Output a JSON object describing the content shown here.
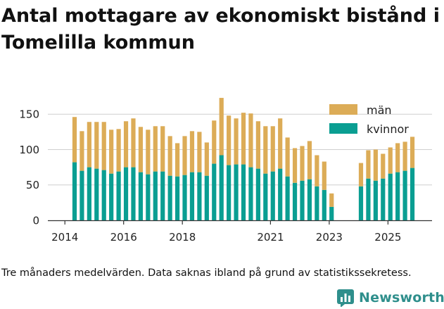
{
  "chart_data": {
    "type": "bar",
    "stacked": true,
    "title": "Antal mottagare av ekonomiskt bistånd i Tomelilla kommun",
    "xlabel": "",
    "ylabel": "",
    "x": [
      2014.33,
      2014.58,
      2014.83,
      2015.08,
      2015.33,
      2015.58,
      2015.83,
      2016.08,
      2016.33,
      2016.58,
      2016.83,
      2017.08,
      2017.33,
      2017.58,
      2017.83,
      2018.08,
      2018.33,
      2018.58,
      2018.83,
      2019.08,
      2019.33,
      2019.58,
      2019.83,
      2020.08,
      2020.33,
      2020.58,
      2020.83,
      2021.08,
      2021.33,
      2021.58,
      2021.83,
      2022.08,
      2022.33,
      2022.58,
      2022.83,
      2023.08,
      2023.33,
      2023.58,
      2023.83,
      2024.08,
      2024.33,
      2024.58,
      2024.83,
      2025.08,
      2025.33,
      2025.58,
      2025.83
    ],
    "series": [
      {
        "name": "kvinnor",
        "color": "#0a9e92",
        "values": [
          82,
          70,
          75,
          73,
          71,
          66,
          69,
          75,
          75,
          68,
          65,
          69,
          69,
          63,
          62,
          64,
          68,
          68,
          63,
          80,
          92,
          78,
          79,
          79,
          75,
          73,
          66,
          69,
          73,
          62,
          53,
          56,
          58,
          48,
          43,
          19,
          null,
          null,
          null,
          48,
          59,
          56,
          59,
          66,
          68,
          70,
          74
        ]
      },
      {
        "name": "män",
        "color": "#dcac57",
        "values": [
          64,
          56,
          64,
          66,
          68,
          62,
          60,
          65,
          69,
          64,
          63,
          64,
          64,
          56,
          47,
          55,
          58,
          57,
          47,
          61,
          81,
          70,
          65,
          73,
          76,
          67,
          67,
          64,
          71,
          55,
          49,
          49,
          54,
          44,
          40,
          19,
          null,
          null,
          null,
          33,
          40,
          44,
          35,
          37,
          41,
          41,
          44
        ]
      }
    ],
    "yticks": [
      0,
      50,
      100,
      150
    ],
    "xticks": [
      "2014",
      "2016",
      "2018",
      "2021",
      "2023",
      "2025"
    ],
    "xtick_values": [
      2014,
      2016,
      2018,
      2021,
      2023,
      2025
    ],
    "ylim": [
      0,
      185
    ],
    "xlim": [
      2013.42,
      2026.5
    ],
    "grid": true,
    "legend": {
      "placement": "top-right",
      "entries": [
        "män",
        "kvinnor"
      ]
    },
    "footnote": "Tre månaders medelvärden. Data saknas ibland på grund av statistikssekretess."
  },
  "brand": {
    "name": "Newsworthy",
    "color": "#2f8f8c"
  },
  "colors": {
    "grid": "#cfcfcf",
    "axis": "#333333"
  }
}
